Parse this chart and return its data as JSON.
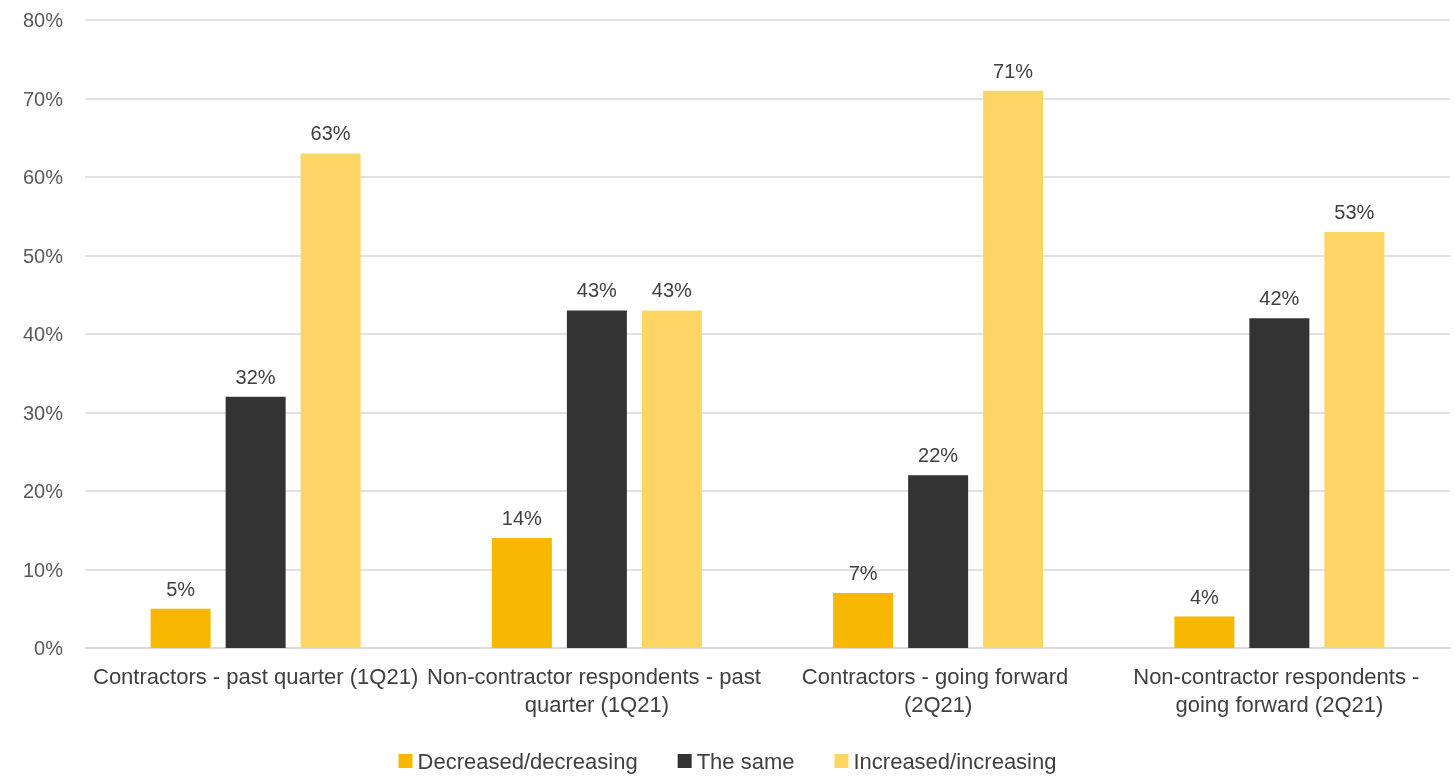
{
  "chart_data": {
    "type": "bar",
    "categories": [
      "Contractors - past quarter (1Q21)",
      "Non-contractor respondents - past quarter (1Q21)",
      "Contractors - going forward (2Q21)",
      "Non-contractor respondents - going forward (2Q21)"
    ],
    "series": [
      {
        "name": "Decreased/decreasing",
        "color": "#f9b800",
        "values": [
          5,
          14,
          7,
          4
        ],
        "value_labels": [
          "5%",
          "14%",
          "7%",
          "4%"
        ]
      },
      {
        "name": "The same",
        "color": "#333333",
        "values": [
          32,
          43,
          22,
          42
        ],
        "value_labels": [
          "32%",
          "43%",
          "22%",
          "42%"
        ]
      },
      {
        "name": "Increased/increasing",
        "color": "#fcd565",
        "values": [
          63,
          43,
          71,
          53
        ],
        "value_labels": [
          "63%",
          "43%",
          "71%",
          "53%"
        ]
      }
    ],
    "ylim": [
      0,
      80
    ],
    "yticks": [
      {
        "value": 0,
        "label": "0%"
      },
      {
        "value": 10,
        "label": "10%"
      },
      {
        "value": 20,
        "label": "20%"
      },
      {
        "value": 30,
        "label": "30%"
      },
      {
        "value": 40,
        "label": "40%"
      },
      {
        "value": 50,
        "label": "50%"
      },
      {
        "value": 60,
        "label": "60%"
      },
      {
        "value": 70,
        "label": "70%"
      },
      {
        "value": 80,
        "label": "80%"
      }
    ],
    "grid": "y",
    "legend": "bottom"
  }
}
